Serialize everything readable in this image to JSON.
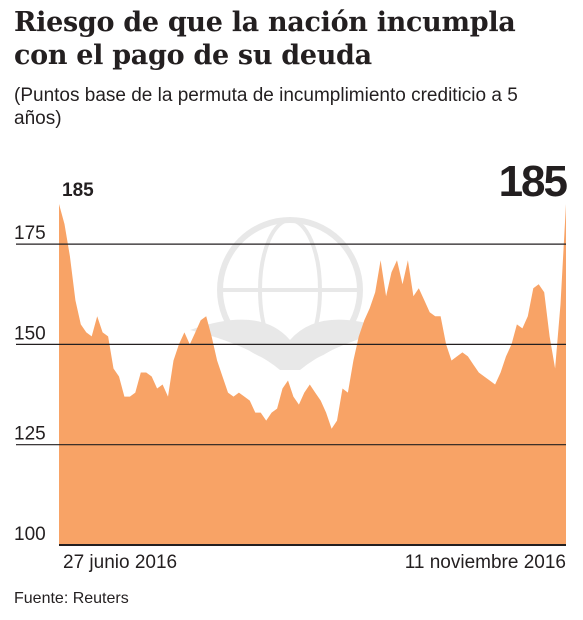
{
  "header": {
    "title": "Riesgo de que la nación incumpla con el pago de su deuda",
    "subtitle": "(Puntos base de la permuta de incumplimiento crediticio a 5 años)"
  },
  "footer": {
    "source": "Fuente: Reuters"
  },
  "colors": {
    "area": "#f8a366",
    "grid": "#231f20",
    "text": "#231f20"
  },
  "chart_data": {
    "type": "area",
    "title": "Riesgo de que la nación incumpla con el pago de su deuda",
    "subtitle": "(Puntos base de la permuta de incumplimiento crediticio a 5 años)",
    "ylim": [
      100,
      185
    ],
    "y_ticks": [
      100,
      125,
      150,
      175
    ],
    "x_tick_labels": [
      "27 junio 2016",
      "11 noviembre 2016"
    ],
    "annotations": [
      {
        "label": "185",
        "at": "start"
      },
      {
        "label": "185",
        "at": "end"
      }
    ],
    "grid": true,
    "series": [
      {
        "values": [
          185,
          180,
          172,
          161,
          155,
          153,
          152,
          157,
          153,
          152,
          144,
          142,
          137,
          137,
          138,
          143,
          143,
          142,
          139,
          140,
          137,
          146,
          150,
          153,
          150,
          153,
          156,
          157,
          152,
          146,
          142,
          138,
          137,
          138,
          137,
          136,
          133,
          133,
          131,
          133,
          134,
          139,
          141,
          137,
          135,
          138,
          140,
          138,
          136,
          133,
          129,
          131,
          139,
          138,
          146,
          152,
          156,
          159,
          163,
          171,
          162,
          168,
          171,
          165,
          171,
          162,
          164,
          161,
          158,
          157,
          157,
          150,
          146,
          147,
          148,
          147,
          145,
          143,
          142,
          141,
          140,
          143,
          147,
          150,
          155,
          154,
          157,
          164,
          165,
          163,
          152,
          144,
          160,
          185
        ]
      }
    ]
  }
}
